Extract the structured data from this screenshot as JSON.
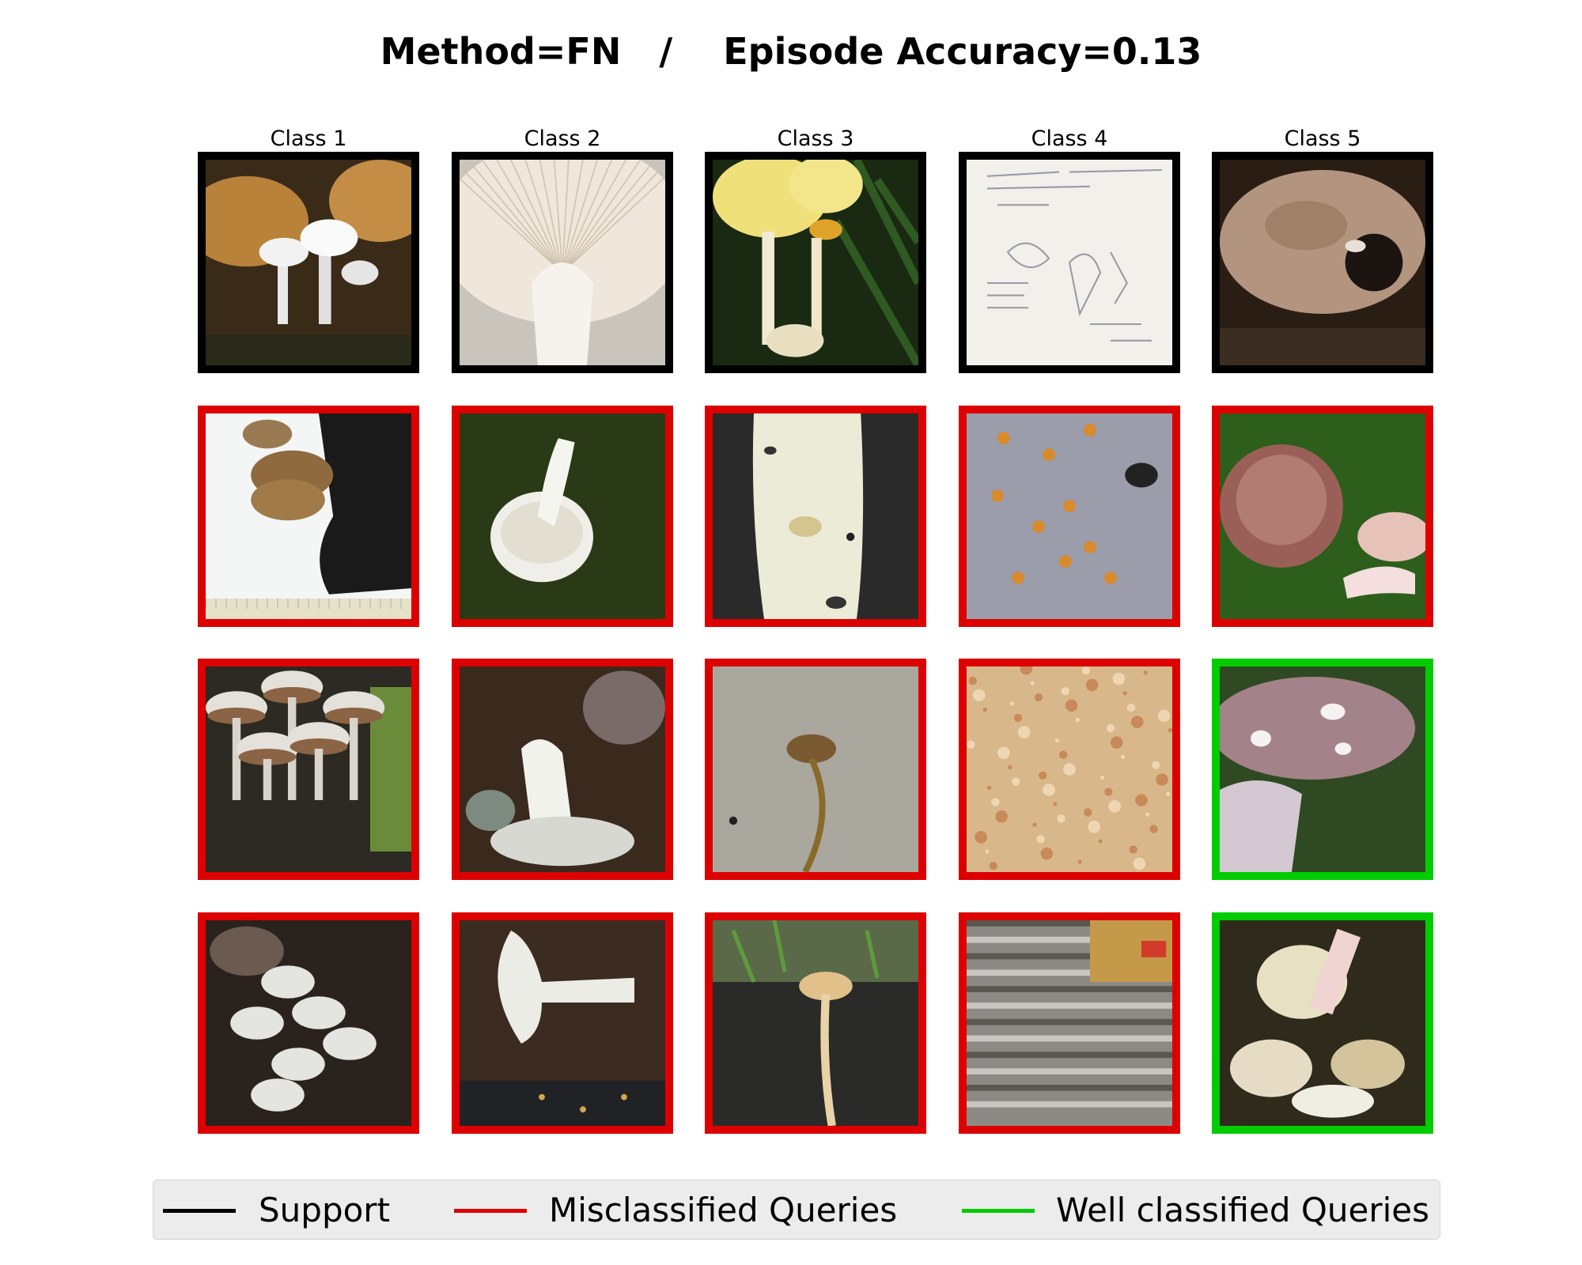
{
  "title": "Method=FN   /    Episode Accuracy=0.13",
  "classes": [
    "Class 1",
    "Class 2",
    "Class 3",
    "Class 4",
    "Class 5"
  ],
  "colors": {
    "support": "#000000",
    "misclassified": "#dd0000",
    "well_classified": "#00cc00"
  },
  "grid": [
    [
      {
        "status": "support",
        "scene": "white-mushroom-cluster-on-wood"
      },
      {
        "status": "support",
        "scene": "white-gills-underside"
      },
      {
        "status": "support",
        "scene": "yellow-caps-with-fir-branch"
      },
      {
        "status": "support",
        "scene": "handwritten-sketch-page"
      },
      {
        "status": "support",
        "scene": "brown-flat-cap"
      }
    ],
    [
      {
        "status": "misclassified",
        "scene": "brown-fungus-on-white-with-ruler"
      },
      {
        "status": "misclassified",
        "scene": "white-mushroom-on-moss"
      },
      {
        "status": "misclassified",
        "scene": "white-stem-closeup"
      },
      {
        "status": "misclassified",
        "scene": "orange-spots-on-grey-bark"
      },
      {
        "status": "misclassified",
        "scene": "pink-caps-on-grass"
      }
    ],
    [
      {
        "status": "misclassified",
        "scene": "grey-mushroom-cluster"
      },
      {
        "status": "misclassified",
        "scene": "white-mushroom-in-leaf-litter"
      },
      {
        "status": "misclassified",
        "scene": "small-brown-mushroom-grey-background"
      },
      {
        "status": "misclassified",
        "scene": "orange-sawdust-texture"
      },
      {
        "status": "well_classified",
        "scene": "spotted-pink-cap-in-hand"
      }
    ],
    [
      {
        "status": "misclassified",
        "scene": "white-curled-mushrooms"
      },
      {
        "status": "misclassified",
        "scene": "white-mushroom-on-dark-tray"
      },
      {
        "status": "misclassified",
        "scene": "thin-tan-mushroom-on-soil"
      },
      {
        "status": "misclassified",
        "scene": "striped-bark-with-ruler"
      },
      {
        "status": "well_classified",
        "scene": "pale-mushrooms-in-litter"
      }
    ]
  ],
  "legend": [
    {
      "key": "support",
      "label": "Support"
    },
    {
      "key": "misclassified",
      "label": "Misclassified Queries"
    },
    {
      "key": "well_classified",
      "label": "Well classified Queries"
    }
  ]
}
